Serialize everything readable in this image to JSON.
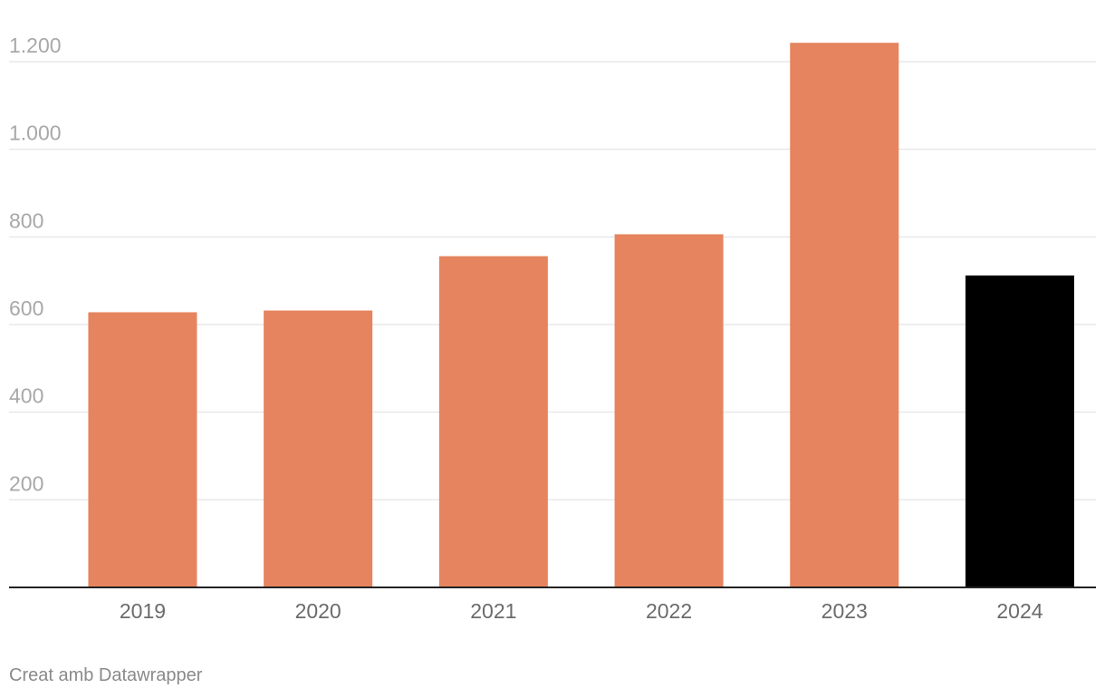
{
  "chart_data": {
    "type": "bar",
    "categories": [
      "2019",
      "2020",
      "2021",
      "2022",
      "2023",
      "2024"
    ],
    "values": [
      628,
      632,
      756,
      806,
      1243,
      712
    ],
    "bar_colors": [
      "#e5845e",
      "#e5845e",
      "#e5845e",
      "#e5845e",
      "#e5845e",
      "#000000"
    ],
    "ylim": [
      0,
      1200
    ],
    "yticks": [
      200,
      400,
      600,
      800,
      1000,
      1200
    ],
    "ytick_labels": [
      "200",
      "400",
      "600",
      "800",
      "1.000",
      "1.200"
    ],
    "grid": true,
    "gridline_color": "#e3e3e3",
    "baseline_color": "#222222",
    "title": "",
    "xlabel": "",
    "ylabel": ""
  },
  "footer": {
    "credit": "Creat amb Datawrapper"
  }
}
